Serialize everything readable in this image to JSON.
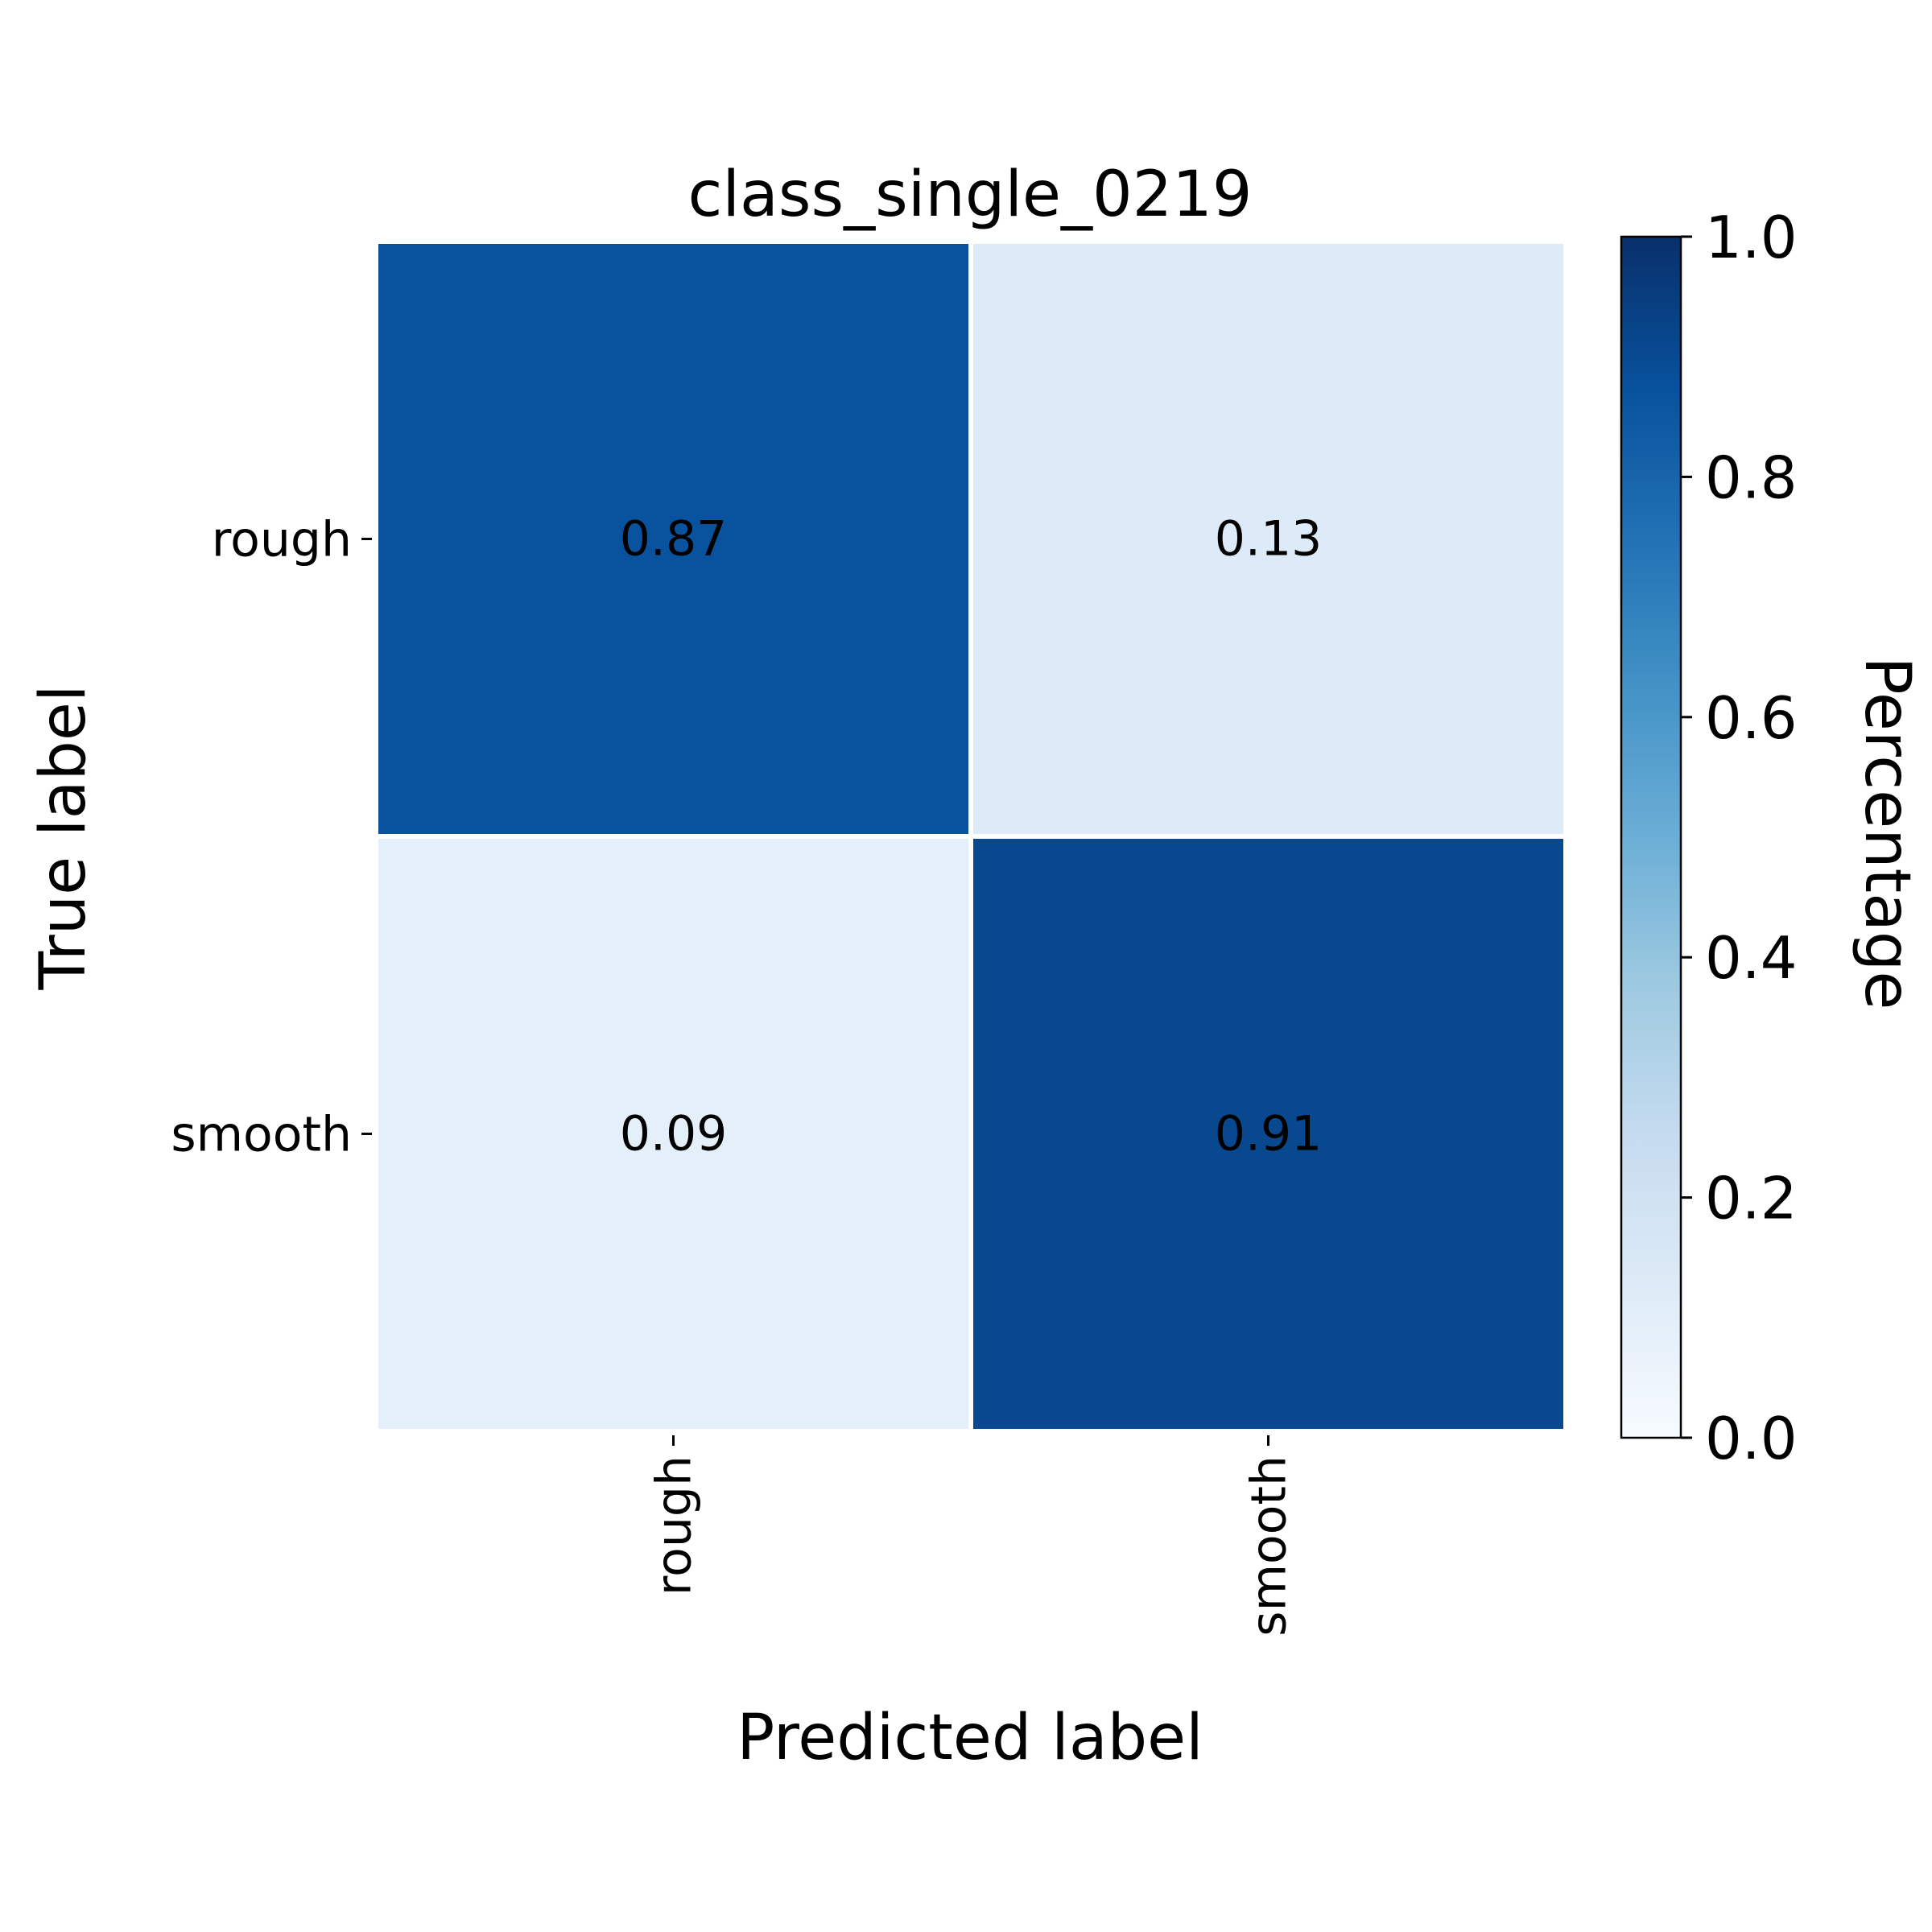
{
  "chart_data": {
    "type": "heatmap",
    "title": "class_single_0219",
    "xlabel": "Predicted label",
    "ylabel": "True label",
    "x_categories": [
      "rough",
      "smooth"
    ],
    "y_categories": [
      "rough",
      "smooth"
    ],
    "values": [
      [
        0.87,
        0.13
      ],
      [
        0.09,
        0.91
      ]
    ],
    "value_labels": [
      [
        "0.87",
        "0.13"
      ],
      [
        "0.09",
        "0.91"
      ]
    ],
    "colormap": "Blues",
    "colorbar": {
      "label": "Percentage",
      "range": [
        0.0,
        1.0
      ],
      "ticks": [
        "0.0",
        "0.2",
        "0.4",
        "0.6",
        "0.8",
        "1.0"
      ]
    },
    "grid": false,
    "cell_separator_color": "#ffffff"
  }
}
